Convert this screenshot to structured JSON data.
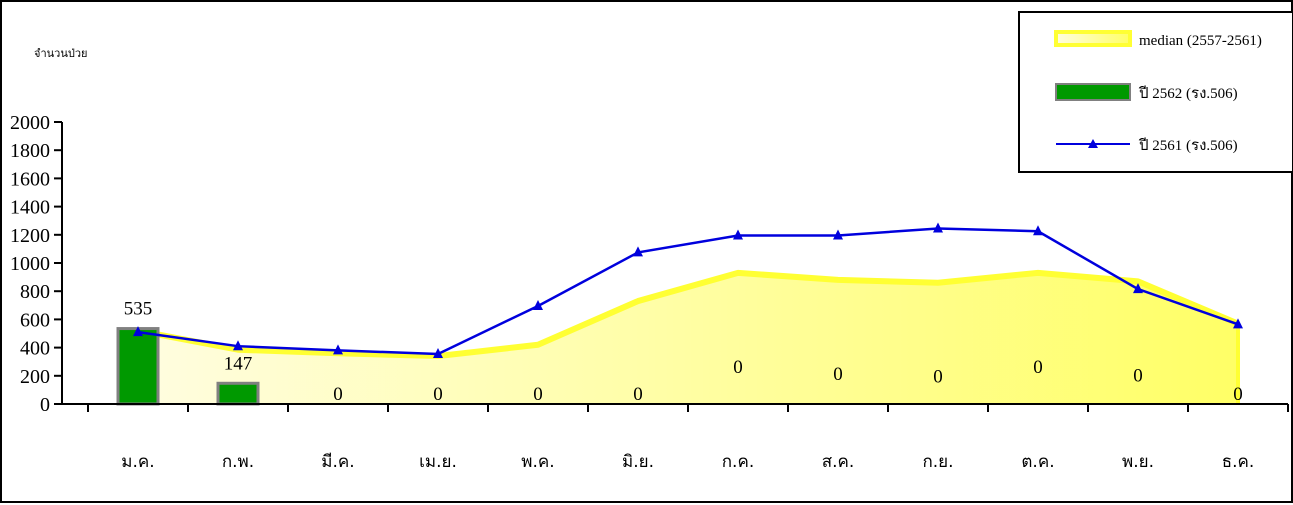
{
  "chart_data": {
    "type": "line",
    "ylabel": "จำนวนป่วย",
    "ylim": [
      0,
      2000
    ],
    "yticks": [
      0,
      200,
      400,
      600,
      800,
      1000,
      1200,
      1400,
      1600,
      1800,
      2000
    ],
    "categories": [
      "ม.ค.",
      "ก.พ.",
      "มี.ค.",
      "เม.ย.",
      "พ.ค.",
      "มิ.ย.",
      "ก.ค.",
      "ส.ค.",
      "ก.ย.",
      "ต.ค.",
      "พ.ย.",
      "ธ.ค."
    ],
    "series": [
      {
        "name": "median (2557-2561)",
        "type": "area",
        "color": "#ffff33",
        "fill_light": "#fffde0",
        "fill_dark": "#ffff66",
        "values": [
          520,
          385,
          360,
          340,
          420,
          730,
          930,
          880,
          860,
          930,
          870,
          570
        ]
      },
      {
        "name": "ปี 2562 (รง.506)",
        "type": "bar",
        "color": "#009900",
        "border": "#808080",
        "values": [
          535,
          147,
          0,
          0,
          0,
          0,
          0,
          0,
          0,
          0,
          0,
          0
        ],
        "labels": [
          "535",
          "147",
          "0",
          "0",
          "0",
          "0",
          "0",
          "0",
          "0",
          "0",
          "0",
          "0"
        ]
      },
      {
        "name": "ปี 2561 (รง.506)",
        "type": "line",
        "color": "#0000dd",
        "marker": "triangle",
        "values": [
          510,
          410,
          380,
          355,
          695,
          1075,
          1195,
          1195,
          1245,
          1225,
          815,
          565
        ]
      }
    ],
    "legend_position": "top-right",
    "grid": false
  }
}
